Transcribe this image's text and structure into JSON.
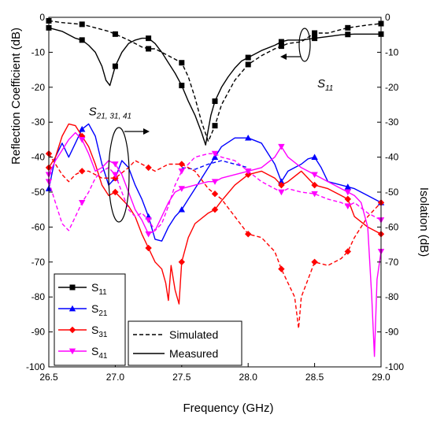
{
  "chart_data": {
    "type": "line",
    "xlabel": "Frequency (GHz)",
    "ylabel": "Reflection Coefficient (dB)",
    "y2label": "Isolation (dB)",
    "xlim": [
      26.5,
      29.0
    ],
    "ylim": [
      -100,
      0
    ],
    "x_ticks": [
      "26.5",
      "27.0",
      "27.5",
      "28.0",
      "28.5",
      "29.0"
    ],
    "y_ticks": [
      "-100",
      "-90",
      "-80",
      "-70",
      "-60",
      "-50",
      "-40",
      "-30",
      "-20",
      "-10",
      "0"
    ],
    "grid": false,
    "legend_series": [
      {
        "name": "S11",
        "main": "S",
        "sub": "11",
        "color": "#000000",
        "marker": "square"
      },
      {
        "name": "S21",
        "main": "S",
        "sub": "21",
        "color": "#0000ff",
        "marker": "triangle-up"
      },
      {
        "name": "S31",
        "main": "S",
        "sub": "31",
        "color": "#ff0000",
        "marker": "diamond"
      },
      {
        "name": "S41",
        "main": "S",
        "sub": "41",
        "color": "#ff00ff",
        "marker": "triangle-down"
      }
    ],
    "legend_lines": [
      {
        "label": "Simulated",
        "style": "dashed"
      },
      {
        "label": "Measured",
        "style": "solid"
      }
    ],
    "annotations": [
      {
        "main": "S",
        "sub": "11",
        "x": 28.52,
        "y": -20
      },
      {
        "main": "S",
        "sub": "21, 31, 41",
        "x": 26.8,
        "y": -28
      }
    ],
    "series": [
      {
        "name": "S11",
        "kind": "measured",
        "color": "#000000",
        "marker": "square",
        "x": [
          26.5,
          26.6,
          26.7,
          26.75,
          26.8,
          26.85,
          26.9,
          26.93,
          26.96,
          27.0,
          27.05,
          27.1,
          27.15,
          27.2,
          27.25,
          27.3,
          27.35,
          27.4,
          27.45,
          27.5,
          27.55,
          27.6,
          27.65,
          27.68,
          27.7,
          27.72,
          27.75,
          27.8,
          27.85,
          27.9,
          27.95,
          28.0,
          28.1,
          28.2,
          28.25,
          28.3,
          28.4,
          28.5,
          28.6,
          28.7,
          28.8,
          28.9,
          29.0
        ],
        "y": [
          -3,
          -4,
          -6,
          -6.5,
          -8,
          -10,
          -14,
          -18,
          -19.5,
          -14,
          -10,
          -7.5,
          -6.5,
          -6,
          -6,
          -7.5,
          -10,
          -13,
          -16,
          -19.5,
          -24,
          -28,
          -33,
          -36.5,
          -32,
          -28,
          -24,
          -20,
          -17,
          -14.5,
          -12.5,
          -11.5,
          -9.5,
          -8,
          -7,
          -6.5,
          -6.5,
          -6,
          -5.5,
          -5,
          -4.8,
          -4.8,
          -4.8
        ],
        "marker_x": [
          26.5,
          26.75,
          27.0,
          27.25,
          27.5,
          27.75,
          28.0,
          28.25,
          28.5,
          28.75,
          29.0
        ]
      },
      {
        "name": "S11",
        "kind": "simulated",
        "color": "#000000",
        "marker": "square",
        "x": [
          26.5,
          26.6,
          26.75,
          26.85,
          26.95,
          27.0,
          27.1,
          27.2,
          27.25,
          27.3,
          27.35,
          27.4,
          27.45,
          27.5,
          27.55,
          27.6,
          27.65,
          27.7,
          27.75,
          27.8,
          27.9,
          28.0,
          28.1,
          28.2,
          28.3,
          28.4,
          28.5,
          28.6,
          28.75,
          28.9,
          29.0
        ],
        "y": [
          -1,
          -1.5,
          -2,
          -3,
          -4,
          -4.8,
          -6.5,
          -8.5,
          -9,
          -9,
          -10,
          -11,
          -12,
          -13,
          -17,
          -23,
          -30,
          -35.5,
          -31,
          -25,
          -18,
          -13.5,
          -11,
          -9,
          -7.5,
          -7,
          -4.5,
          -4.5,
          -3,
          -2.2,
          -1.8
        ],
        "marker_x": [
          26.5,
          26.75,
          27.0,
          27.25,
          27.5,
          27.75,
          28.0,
          28.25,
          28.5,
          28.75,
          29.0
        ]
      },
      {
        "name": "S21",
        "kind": "measured",
        "color": "#0000ff",
        "marker": "triangle-up",
        "x": [
          26.5,
          26.55,
          26.6,
          26.65,
          26.7,
          26.75,
          26.8,
          26.85,
          26.9,
          26.95,
          27.0,
          27.05,
          27.1,
          27.15,
          27.2,
          27.25,
          27.28,
          27.3,
          27.35,
          27.4,
          27.45,
          27.5,
          27.55,
          27.6,
          27.7,
          27.75,
          27.8,
          27.9,
          28.0,
          28.1,
          28.2,
          28.25,
          28.3,
          28.35,
          28.4,
          28.45,
          28.5,
          28.55,
          28.6,
          28.7,
          28.8,
          28.9,
          29.0
        ],
        "y": [
          -49,
          -40,
          -36,
          -40,
          -36,
          -32,
          -30.5,
          -34,
          -42,
          -48,
          -46,
          -41,
          -43,
          -48,
          -52,
          -57,
          -61,
          -63.5,
          -64,
          -60,
          -57,
          -55,
          -52,
          -49,
          -43,
          -40,
          -37,
          -34.5,
          -34.5,
          -36,
          -42,
          -47,
          -44,
          -43,
          -42,
          -40.5,
          -40,
          -43,
          -47,
          -48,
          -49,
          -51,
          -53
        ],
        "marker_x": [
          26.5,
          26.75,
          27.0,
          27.25,
          27.5,
          27.75,
          28.0,
          28.25,
          28.5,
          28.75,
          29.0
        ]
      },
      {
        "name": "S21",
        "kind": "simulated",
        "color": "#0000ff",
        "marker": "triangle-up",
        "x": [
          27.5,
          27.6,
          27.7,
          27.8,
          27.9,
          28.0
        ],
        "y": [
          -43,
          -43.5,
          -42,
          -41,
          -42,
          -43
        ],
        "marker_x": []
      },
      {
        "name": "S31",
        "kind": "measured",
        "color": "#ff0000",
        "marker": "diamond",
        "x": [
          26.5,
          26.55,
          26.6,
          26.65,
          26.7,
          26.75,
          26.8,
          26.85,
          26.9,
          26.95,
          27.0,
          27.05,
          27.1,
          27.15,
          27.2,
          27.25,
          27.3,
          27.35,
          27.38,
          27.4,
          27.42,
          27.45,
          27.48,
          27.5,
          27.55,
          27.6,
          27.7,
          27.75,
          27.8,
          27.9,
          28.0,
          28.1,
          28.2,
          28.25,
          28.3,
          28.4,
          28.5,
          28.6,
          28.7,
          28.75,
          28.8,
          28.9,
          29.0
        ],
        "y": [
          -43,
          -40,
          -34,
          -30.5,
          -31,
          -34,
          -37,
          -42,
          -48,
          -51,
          -50,
          -52,
          -54,
          -57,
          -62,
          -66,
          -70,
          -72,
          -76,
          -81,
          -71,
          -78,
          -82,
          -70,
          -63,
          -59,
          -56,
          -55,
          -52.5,
          -48,
          -45,
          -44,
          -46,
          -48,
          -47,
          -44,
          -48,
          -49,
          -51,
          -52,
          -57,
          -60,
          -62
        ],
        "marker_x": [
          26.5,
          26.75,
          27.0,
          27.25,
          27.5,
          27.75,
          28.0,
          28.25,
          28.5,
          28.75,
          29.0
        ]
      },
      {
        "name": "S31",
        "kind": "simulated",
        "color": "#ff0000",
        "marker": "diamond",
        "x": [
          26.5,
          26.6,
          26.65,
          26.7,
          26.75,
          26.8,
          26.9,
          27.0,
          27.1,
          27.15,
          27.2,
          27.3,
          27.4,
          27.5,
          27.6,
          27.7,
          27.8,
          27.9,
          28.0,
          28.1,
          28.2,
          28.25,
          28.3,
          28.35,
          28.38,
          28.4,
          28.45,
          28.5,
          28.6,
          28.7,
          28.75,
          28.8,
          28.9,
          29.0
        ],
        "y": [
          -39,
          -45,
          -47,
          -45,
          -44,
          -44,
          -46,
          -46,
          -43,
          -41,
          -42,
          -44,
          -42,
          -42,
          -44,
          -49,
          -52,
          -57,
          -62,
          -63,
          -67,
          -72,
          -76,
          -80,
          -89,
          -80,
          -75,
          -70,
          -71,
          -69,
          -67,
          -63,
          -57,
          -53
        ],
        "marker_x": [
          26.5,
          26.75,
          27.0,
          27.25,
          27.5,
          27.75,
          28.0,
          28.25,
          28.5,
          28.75,
          29.0
        ]
      },
      {
        "name": "S41",
        "kind": "measured",
        "color": "#ff00ff",
        "marker": "triangle-down",
        "x": [
          26.5,
          26.55,
          26.6,
          26.65,
          26.7,
          26.75,
          26.8,
          26.85,
          26.9,
          26.95,
          27.0,
          27.05,
          27.1,
          27.15,
          27.2,
          27.25,
          27.3,
          27.35,
          27.4,
          27.45,
          27.5,
          27.6,
          27.7,
          27.75,
          27.8,
          27.9,
          28.0,
          28.1,
          28.2,
          28.25,
          28.3,
          28.4,
          28.5,
          28.6,
          28.7,
          28.8,
          28.85,
          28.9,
          28.93,
          28.95,
          28.97,
          29.0
        ],
        "y": [
          -45,
          -41,
          -38,
          -35,
          -33,
          -35,
          -39,
          -44,
          -43,
          -41,
          -42,
          -45,
          -50,
          -55,
          -58,
          -62,
          -61,
          -57,
          -53,
          -50,
          -49,
          -48,
          -47,
          -47,
          -46,
          -45,
          -44,
          -43,
          -40,
          -37,
          -40,
          -43,
          -45,
          -47,
          -49,
          -51,
          -53,
          -60,
          -80,
          -97,
          -75,
          -67
        ],
        "marker_x": [
          26.5,
          26.75,
          27.0,
          27.25,
          27.5,
          27.75,
          28.0,
          28.25,
          28.5,
          28.75,
          29.0
        ]
      },
      {
        "name": "S41",
        "kind": "simulated",
        "color": "#ff00ff",
        "marker": "triangle-down",
        "x": [
          26.5,
          26.55,
          26.6,
          26.65,
          26.7,
          26.75,
          26.8,
          26.85,
          26.9,
          26.95,
          27.0,
          27.05,
          27.1,
          27.15,
          27.2,
          27.25,
          27.3,
          27.35,
          27.4,
          27.45,
          27.5,
          27.6,
          27.7,
          27.75,
          27.8,
          27.9,
          28.0,
          28.1,
          28.2,
          28.25,
          28.3,
          28.4,
          28.5,
          28.6,
          28.7,
          28.75,
          28.8,
          28.9,
          29.0
        ],
        "y": [
          -47,
          -53,
          -59,
          -61,
          -57,
          -53,
          -50,
          -46,
          -44,
          -43,
          -45,
          -50,
          -55,
          -57,
          -56,
          -58,
          -61,
          -59,
          -54,
          -48,
          -44,
          -40,
          -39,
          -39,
          -40,
          -41,
          -44,
          -47,
          -49,
          -50,
          -49,
          -50,
          -50.5,
          -52,
          -53,
          -54,
          -53,
          -56,
          -58
        ],
        "marker_x": [
          26.5,
          26.75,
          27.0,
          27.25,
          27.5,
          27.75,
          28.0,
          28.25,
          28.5,
          28.75,
          29.0
        ]
      }
    ]
  }
}
